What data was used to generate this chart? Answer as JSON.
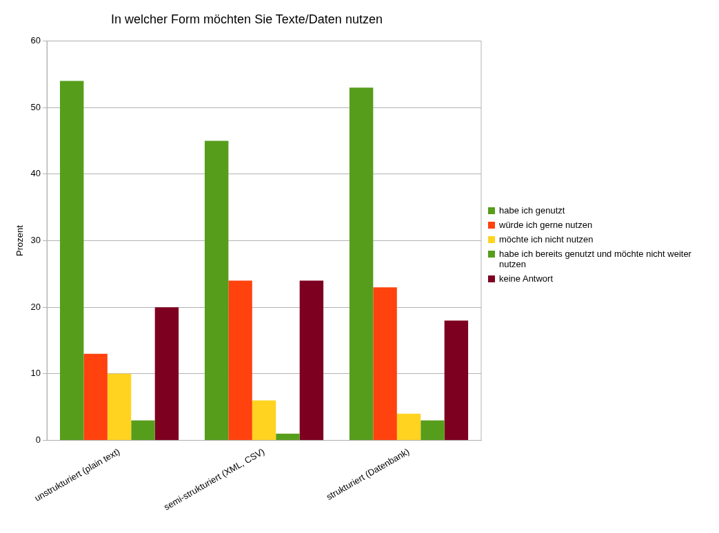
{
  "chart_data": {
    "type": "bar",
    "title": "In welcher Form möchten Sie Texte/Daten nutzen",
    "ylabel": "Prozent",
    "categories": [
      "unstrukturiert (plain text)",
      "semi-strukturiert (XML, CSV)",
      "strukturiert (Datenbank)"
    ],
    "series": [
      {
        "name": "habe ich genutzt",
        "color": "#579d1c",
        "values": [
          54,
          45,
          53
        ]
      },
      {
        "name": "würde ich gerne nutzen",
        "color": "#ff420e",
        "values": [
          13,
          24,
          23
        ]
      },
      {
        "name": "möchte ich nicht nutzen",
        "color": "#ffd320",
        "values": [
          10,
          6,
          4
        ]
      },
      {
        "name": "habe ich bereits genutzt und möchte nicht weiter nutzen",
        "color": "#579d1c",
        "values": [
          3,
          1,
          3
        ]
      },
      {
        "name": "keine Antwort",
        "color": "#7e0021",
        "values": [
          20,
          24,
          18
        ]
      }
    ],
    "ylim": [
      0,
      60
    ],
    "yticks": [
      0,
      10,
      20,
      30,
      40,
      50,
      60
    ],
    "grid": "y",
    "legend": "right"
  }
}
